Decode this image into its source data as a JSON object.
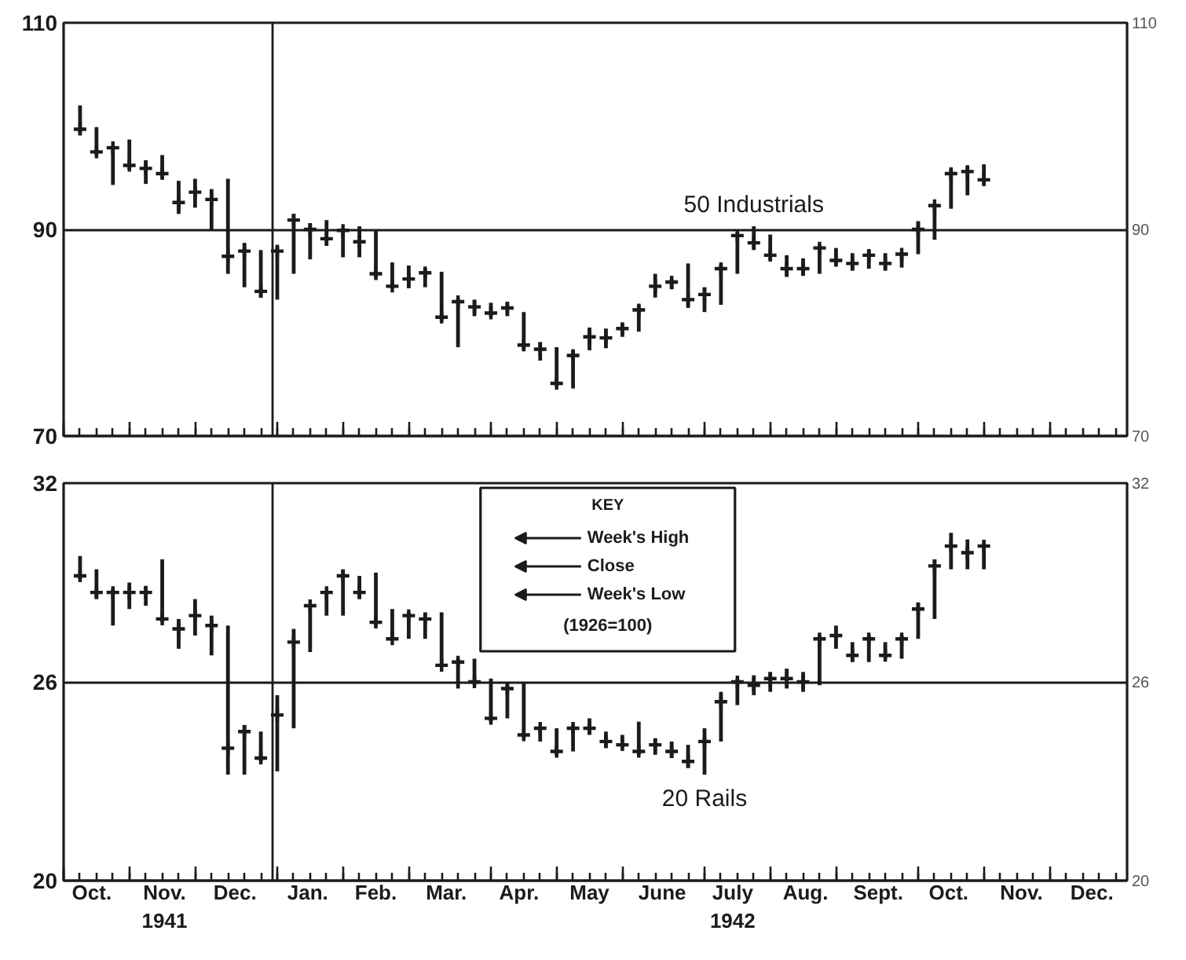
{
  "chart_data": [
    {
      "type": "scatter",
      "marker": "cross",
      "x": [
        "1941-10-11",
        "1941-10-18",
        "1941-10-25",
        "1941-11-01",
        "1941-11-08",
        "1941-11-15",
        "1941-11-22",
        "1941-11-29",
        "1941-12-06",
        "1941-12-13",
        "1941-12-20",
        "1941-12-27",
        "1942-01-03",
        "1942-01-10",
        "1942-01-17",
        "1942-01-24",
        "1942-01-31",
        "1942-02-07",
        "1942-02-14",
        "1942-02-21",
        "1942-02-28",
        "1942-03-07",
        "1942-03-14",
        "1942-03-21",
        "1942-03-28",
        "1942-04-04",
        "1942-04-11",
        "1942-04-18",
        "1942-04-25",
        "1942-05-02",
        "1942-05-09",
        "1942-05-16",
        "1942-05-23",
        "1942-05-30",
        "1942-06-06",
        "1942-06-13",
        "1942-06-20",
        "1942-06-27",
        "1942-07-04",
        "1942-07-11",
        "1942-07-18",
        "1942-07-25",
        "1942-08-01",
        "1942-08-08",
        "1942-08-15",
        "1942-08-22",
        "1942-08-29",
        "1942-09-05",
        "1942-09-12",
        "1942-09-19",
        "1942-09-26",
        "1942-10-03",
        "1942-10-10",
        "1942-10-17",
        "1942-10-24",
        "1942-10-31"
      ],
      "series": [
        {
          "name": "50 Industrials",
          "color": "#1b1b1b",
          "values": [
            99.7,
            97.5,
            97.9,
            96.2,
            95.9,
            95.4,
            92.6,
            93.6,
            92.9,
            87.4,
            87.9,
            84.0,
            87.9,
            90.9,
            90.0,
            89.1,
            89.9,
            88.8,
            85.7,
            84.5,
            85.2,
            85.8,
            81.5,
            83.0,
            82.5,
            81.9,
            82.4,
            78.8,
            78.4,
            75.1,
            77.8,
            79.6,
            79.5,
            80.4,
            82.2,
            84.5,
            84.9,
            83.2,
            83.7,
            86.2,
            89.4,
            88.7,
            87.5,
            86.2,
            86.2,
            88.2,
            87.0,
            86.7,
            87.5,
            86.7,
            87.6,
            90.0,
            92.3,
            95.4,
            95.6,
            94.8
          ],
          "errors": [
            [
              99.2,
              102.0
            ],
            [
              97.2,
              99.9
            ],
            [
              94.3,
              98.1
            ],
            [
              95.8,
              98.7
            ],
            [
              94.4,
              96.7
            ],
            [
              94.9,
              97.2
            ],
            [
              91.5,
              94.7
            ],
            [
              92.1,
              94.9
            ],
            [
              90.0,
              93.9
            ],
            [
              85.7,
              94.9
            ],
            [
              84.4,
              88.7
            ],
            [
              83.4,
              88.0
            ],
            [
              83.2,
              88.4
            ],
            [
              85.7,
              91.5
            ],
            [
              87.1,
              90.6
            ],
            [
              88.4,
              90.9
            ],
            [
              87.3,
              90.1
            ],
            [
              87.3,
              90.3
            ],
            [
              85.3,
              89.9
            ],
            [
              84.3,
              86.8
            ],
            [
              84.3,
              86.5
            ],
            [
              84.4,
              86.2
            ],
            [
              81.1,
              85.9
            ],
            [
              78.6,
              83.3
            ],
            [
              81.6,
              83.2
            ],
            [
              81.6,
              82.9
            ],
            [
              81.6,
              82.9
            ],
            [
              78.3,
              82.0
            ],
            [
              77.3,
              79.1
            ],
            [
              74.8,
              78.6
            ],
            [
              74.6,
              78.3
            ],
            [
              78.3,
              80.5
            ],
            [
              78.5,
              80.4
            ],
            [
              79.6,
              80.9
            ],
            [
              80.1,
              82.7
            ],
            [
              83.4,
              85.7
            ],
            [
              84.2,
              85.2
            ],
            [
              82.4,
              86.7
            ],
            [
              82.0,
              84.4
            ],
            [
              82.7,
              86.6
            ],
            [
              85.7,
              89.7
            ],
            [
              88.0,
              90.3
            ],
            [
              87.0,
              89.5
            ],
            [
              85.4,
              87.5
            ],
            [
              85.5,
              87.2
            ],
            [
              85.7,
              88.5
            ],
            [
              86.5,
              88.2
            ],
            [
              86.0,
              87.7
            ],
            [
              86.2,
              88.0
            ],
            [
              86.0,
              87.7
            ],
            [
              86.3,
              87.8
            ],
            [
              87.6,
              90.8
            ],
            [
              89.0,
              92.5
            ],
            [
              92.0,
              95.8
            ],
            [
              93.3,
              96.1
            ],
            [
              94.3,
              96.3
            ]
          ]
        }
      ],
      "xlim": [
        "1941-10-04",
        "1942-12-31"
      ],
      "ylim": [
        70,
        110
      ],
      "yticks": [
        70,
        90,
        110
      ],
      "y2lim": [
        70,
        110
      ],
      "y2ticks": [
        70,
        90,
        110
      ],
      "grid": "y",
      "ref_lines": [
        {
          "axis": "x",
          "value": "1942-01-01"
        }
      ],
      "tick_labels": "y"
    },
    {
      "type": "scatter",
      "marker": "cross",
      "x": [
        "1941-10-11",
        "1941-10-18",
        "1941-10-25",
        "1941-11-01",
        "1941-11-08",
        "1941-11-15",
        "1941-11-22",
        "1941-11-29",
        "1941-12-06",
        "1941-12-13",
        "1941-12-20",
        "1941-12-27",
        "1942-01-03",
        "1942-01-10",
        "1942-01-17",
        "1942-01-24",
        "1942-01-31",
        "1942-02-07",
        "1942-02-14",
        "1942-02-21",
        "1942-02-28",
        "1942-03-07",
        "1942-03-14",
        "1942-03-21",
        "1942-03-28",
        "1942-04-04",
        "1942-04-11",
        "1942-04-18",
        "1942-04-25",
        "1942-05-02",
        "1942-05-09",
        "1942-05-16",
        "1942-05-23",
        "1942-05-30",
        "1942-06-06",
        "1942-06-13",
        "1942-06-20",
        "1942-06-27",
        "1942-07-04",
        "1942-07-11",
        "1942-07-18",
        "1942-07-25",
        "1942-08-01",
        "1942-08-08",
        "1942-08-15",
        "1942-08-22",
        "1942-08-29",
        "1942-09-05",
        "1942-09-12",
        "1942-09-19",
        "1942-09-26",
        "1942-10-03",
        "1942-10-10",
        "1942-10-17",
        "1942-10-24",
        "1942-10-31"
      ],
      "series": [
        {
          "name": "20 Rails",
          "color": "#1b1b1b",
          "values": [
            29.2,
            28.7,
            28.7,
            28.7,
            28.7,
            27.9,
            27.6,
            28.0,
            27.7,
            24.0,
            24.5,
            23.7,
            25.0,
            27.2,
            28.3,
            28.7,
            29.2,
            28.7,
            27.8,
            27.3,
            28.0,
            27.9,
            26.5,
            26.6,
            26.0,
            24.9,
            25.8,
            24.4,
            24.6,
            23.9,
            24.6,
            24.6,
            24.2,
            24.1,
            23.9,
            24.1,
            23.9,
            23.6,
            24.2,
            25.4,
            26.0,
            25.9,
            26.1,
            26.1,
            26.0,
            27.3,
            27.4,
            26.8,
            27.3,
            26.8,
            27.3,
            28.2,
            29.5,
            30.1,
            29.9,
            30.1
          ],
          "errors": [
            [
              29.1,
              29.8
            ],
            [
              28.5,
              29.4
            ],
            [
              27.7,
              28.8
            ],
            [
              28.2,
              29.0
            ],
            [
              28.3,
              28.9
            ],
            [
              27.8,
              29.7
            ],
            [
              27.0,
              27.9
            ],
            [
              27.4,
              28.5
            ],
            [
              26.8,
              28.0
            ],
            [
              23.2,
              27.7
            ],
            [
              23.2,
              24.7
            ],
            [
              23.6,
              24.5
            ],
            [
              23.3,
              25.6
            ],
            [
              24.6,
              27.6
            ],
            [
              26.9,
              28.3
            ],
            [
              28.0,
              28.7
            ],
            [
              28.0,
              29.4
            ],
            [
              28.5,
              29.2
            ],
            [
              27.7,
              29.3
            ],
            [
              27.3,
              28.2
            ],
            [
              27.3,
              28.1
            ],
            [
              27.3,
              28.1
            ],
            [
              26.5,
              28.1
            ],
            [
              25.8,
              26.7
            ],
            [
              25.9,
              26.7
            ],
            [
              24.8,
              26.1
            ],
            [
              24.9,
              26.0
            ],
            [
              24.3,
              26.0
            ],
            [
              24.2,
              24.6
            ],
            [
              23.8,
              24.6
            ],
            [
              23.9,
              24.7
            ],
            [
              24.4,
              24.9
            ],
            [
              24.0,
              24.5
            ],
            [
              24.0,
              24.4
            ],
            [
              23.8,
              24.8
            ],
            [
              23.8,
              24.3
            ],
            [
              23.7,
              24.2
            ],
            [
              23.4,
              24.1
            ],
            [
              23.2,
              24.6
            ],
            [
              24.2,
              25.7
            ],
            [
              25.3,
              26.1
            ],
            [
              25.6,
              26.2
            ],
            [
              25.7,
              26.3
            ],
            [
              25.8,
              26.4
            ],
            [
              25.7,
              26.3
            ],
            [
              25.9,
              27.4
            ],
            [
              27.0,
              27.7
            ],
            [
              26.6,
              27.2
            ],
            [
              26.6,
              27.4
            ],
            [
              26.7,
              27.2
            ],
            [
              26.7,
              27.4
            ],
            [
              27.3,
              28.4
            ],
            [
              27.9,
              29.7
            ],
            [
              29.4,
              30.5
            ],
            [
              29.4,
              30.3
            ],
            [
              29.4,
              30.2
            ]
          ]
        }
      ],
      "xlim": [
        "1941-10-04",
        "1942-12-31"
      ],
      "xticks": [
        {
          "value": "1941-10-16",
          "label": "Oct."
        },
        {
          "value": "1941-11-16",
          "label": "Nov.\n1941"
        },
        {
          "value": "1941-12-16",
          "label": "Dec."
        },
        {
          "value": "1942-01-16",
          "label": "Jan."
        },
        {
          "value": "1942-02-14",
          "label": "Feb."
        },
        {
          "value": "1942-03-16",
          "label": "Mar."
        },
        {
          "value": "1942-04-16",
          "label": "Apr."
        },
        {
          "value": "1942-05-16",
          "label": "May"
        },
        {
          "value": "1942-06-16",
          "label": "June"
        },
        {
          "value": "1942-07-16",
          "label": "July\n1942"
        },
        {
          "value": "1942-08-16",
          "label": "Aug."
        },
        {
          "value": "1942-09-16",
          "label": "Sept."
        },
        {
          "value": "1942-10-16",
          "label": "Oct."
        },
        {
          "value": "1942-11-16",
          "label": "Nov."
        },
        {
          "value": "1942-12-16",
          "label": "Dec."
        }
      ],
      "ylim": [
        20,
        32
      ],
      "yticks": [
        20,
        26,
        32
      ],
      "y2lim": [
        20,
        32
      ],
      "y2ticks": [
        20,
        26,
        32
      ],
      "grid": "y",
      "ref_lines": [
        {
          "axis": "x",
          "value": "1942-01-01"
        }
      ]
    },
    {
      "type": "other",
      "title": "KEY",
      "annotations": [
        "Week's High",
        "Close",
        "Week's Low",
        "(1926=100)"
      ]
    }
  ]
}
